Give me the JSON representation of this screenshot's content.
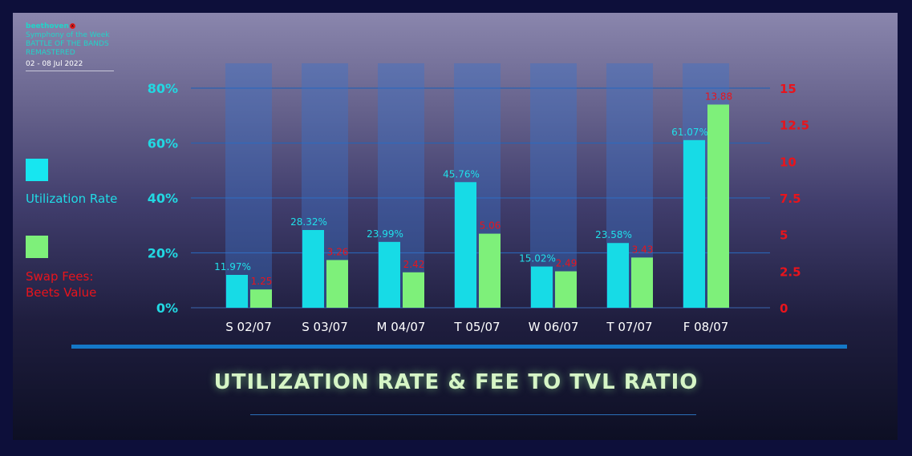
{
  "brand": {
    "logo": "beethoven",
    "logo_mark": "x",
    "line1": "Symphony of the Week",
    "line2": "BATTLE OF THE BANDS",
    "line3": "REMASTERED",
    "date": "02 - 08 Jul 2022"
  },
  "legend": {
    "utilization": "Utilization Rate",
    "swap_fees_line1": "Swap Fees:",
    "swap_fees_line2": "Beets Value"
  },
  "title": "UTILIZATION RATE & FEE TO TVL RATIO",
  "colors": {
    "utilization": "#17dbe6",
    "swap_fees": "#7ef07a",
    "utilization_label": "#20e0ea",
    "fee_label": "#e8141c",
    "background_column": "#3c72c8"
  },
  "chart_data": {
    "type": "bar",
    "categories": [
      "S 02/07",
      "S 03/07",
      "M 04/07",
      "T 05/07",
      "W 06/07",
      "T 07/07",
      "F 08/07"
    ],
    "series": [
      {
        "name": "Utilization Rate",
        "axis": "left",
        "values": [
          11.97,
          28.32,
          23.99,
          45.76,
          15.02,
          23.58,
          61.07
        ],
        "labels": [
          "11.97%",
          "28.32%",
          "23.99%",
          "45.76%",
          "15.02%",
          "23.58%",
          "61.07%"
        ]
      },
      {
        "name": "Swap Fees: Beets Value",
        "axis": "right",
        "values": [
          1.25,
          3.26,
          2.42,
          5.06,
          2.49,
          3.43,
          13.88
        ],
        "labels": [
          "1.25",
          "3.26",
          "2.42",
          "5.06",
          "2.49",
          "3.43",
          "13.88"
        ]
      }
    ],
    "y_left": {
      "ylim": [
        0,
        80
      ],
      "ticks": [
        "0%",
        "20%",
        "40%",
        "60%",
        "80%"
      ]
    },
    "y_right": {
      "ylim": [
        0,
        15
      ],
      "ticks": [
        "0",
        "2.5",
        "5",
        "7.5",
        "10",
        "12.5",
        "15"
      ]
    },
    "grid": true,
    "legend_position": "left"
  }
}
